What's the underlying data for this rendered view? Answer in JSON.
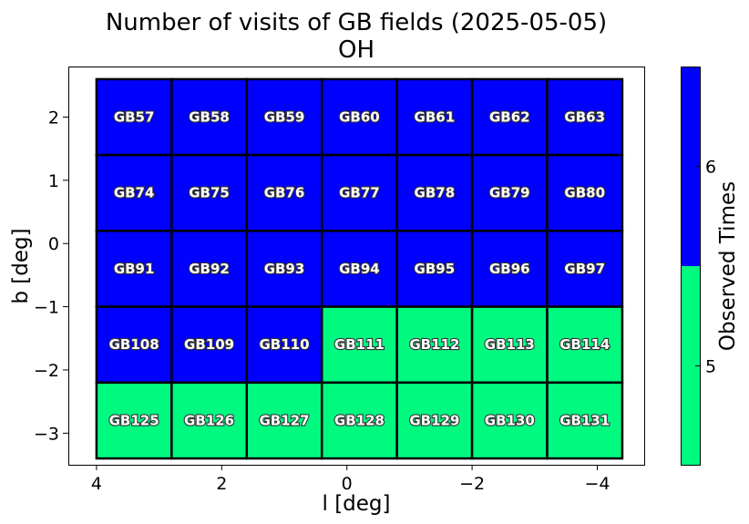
{
  "chart_data": {
    "type": "heatmap",
    "title": "Number of visits of GB fields (2025-05-05)",
    "subtitle": "OH",
    "xlabel": "l [deg]",
    "ylabel": "b [deg]",
    "xlim": [
      4.45,
      -4.75
    ],
    "ylim": [
      -3.5,
      2.8
    ],
    "x_ticks": [
      4,
      2,
      0,
      -2,
      -4
    ],
    "x_tick_labels": [
      "4",
      "2",
      "0",
      "−2",
      "−4"
    ],
    "y_ticks": [
      2,
      1,
      0,
      -1,
      -2,
      -3
    ],
    "y_tick_labels": [
      "2",
      "1",
      "0",
      "−1",
      "−2",
      "−3"
    ],
    "l_centers": [
      3.4,
      2.2,
      1.0,
      -0.2,
      -1.4,
      -2.6,
      -3.8
    ],
    "l_step": 1.2,
    "b_centers": [
      2.0,
      0.8,
      -0.4,
      -1.6,
      -2.8
    ],
    "b_step": 1.2,
    "fields": [
      [
        "GB57",
        "GB58",
        "GB59",
        "GB60",
        "GB61",
        "GB62",
        "GB63"
      ],
      [
        "GB74",
        "GB75",
        "GB76",
        "GB77",
        "GB78",
        "GB79",
        "GB80"
      ],
      [
        "GB91",
        "GB92",
        "GB93",
        "GB94",
        "GB95",
        "GB96",
        "GB97"
      ],
      [
        "GB108",
        "GB109",
        "GB110",
        "GB111",
        "GB112",
        "GB113",
        "GB114"
      ],
      [
        "GB125",
        "GB126",
        "GB127",
        "GB128",
        "GB129",
        "GB130",
        "GB131"
      ]
    ],
    "visits": [
      [
        6,
        6,
        6,
        6,
        6,
        6,
        6
      ],
      [
        6,
        6,
        6,
        6,
        6,
        6,
        6
      ],
      [
        6,
        6,
        6,
        6,
        6,
        6,
        6
      ],
      [
        6,
        6,
        6,
        5,
        5,
        5,
        5
      ],
      [
        5,
        5,
        5,
        5,
        5,
        5,
        5
      ]
    ],
    "colorbar": {
      "label": "Observed Times",
      "levels": [
        5,
        6
      ],
      "tick_labels": [
        "5",
        "6"
      ],
      "colors": {
        "5": "#00fa80",
        "6": "#0000ff"
      }
    },
    "grid": false,
    "legend": "none"
  }
}
